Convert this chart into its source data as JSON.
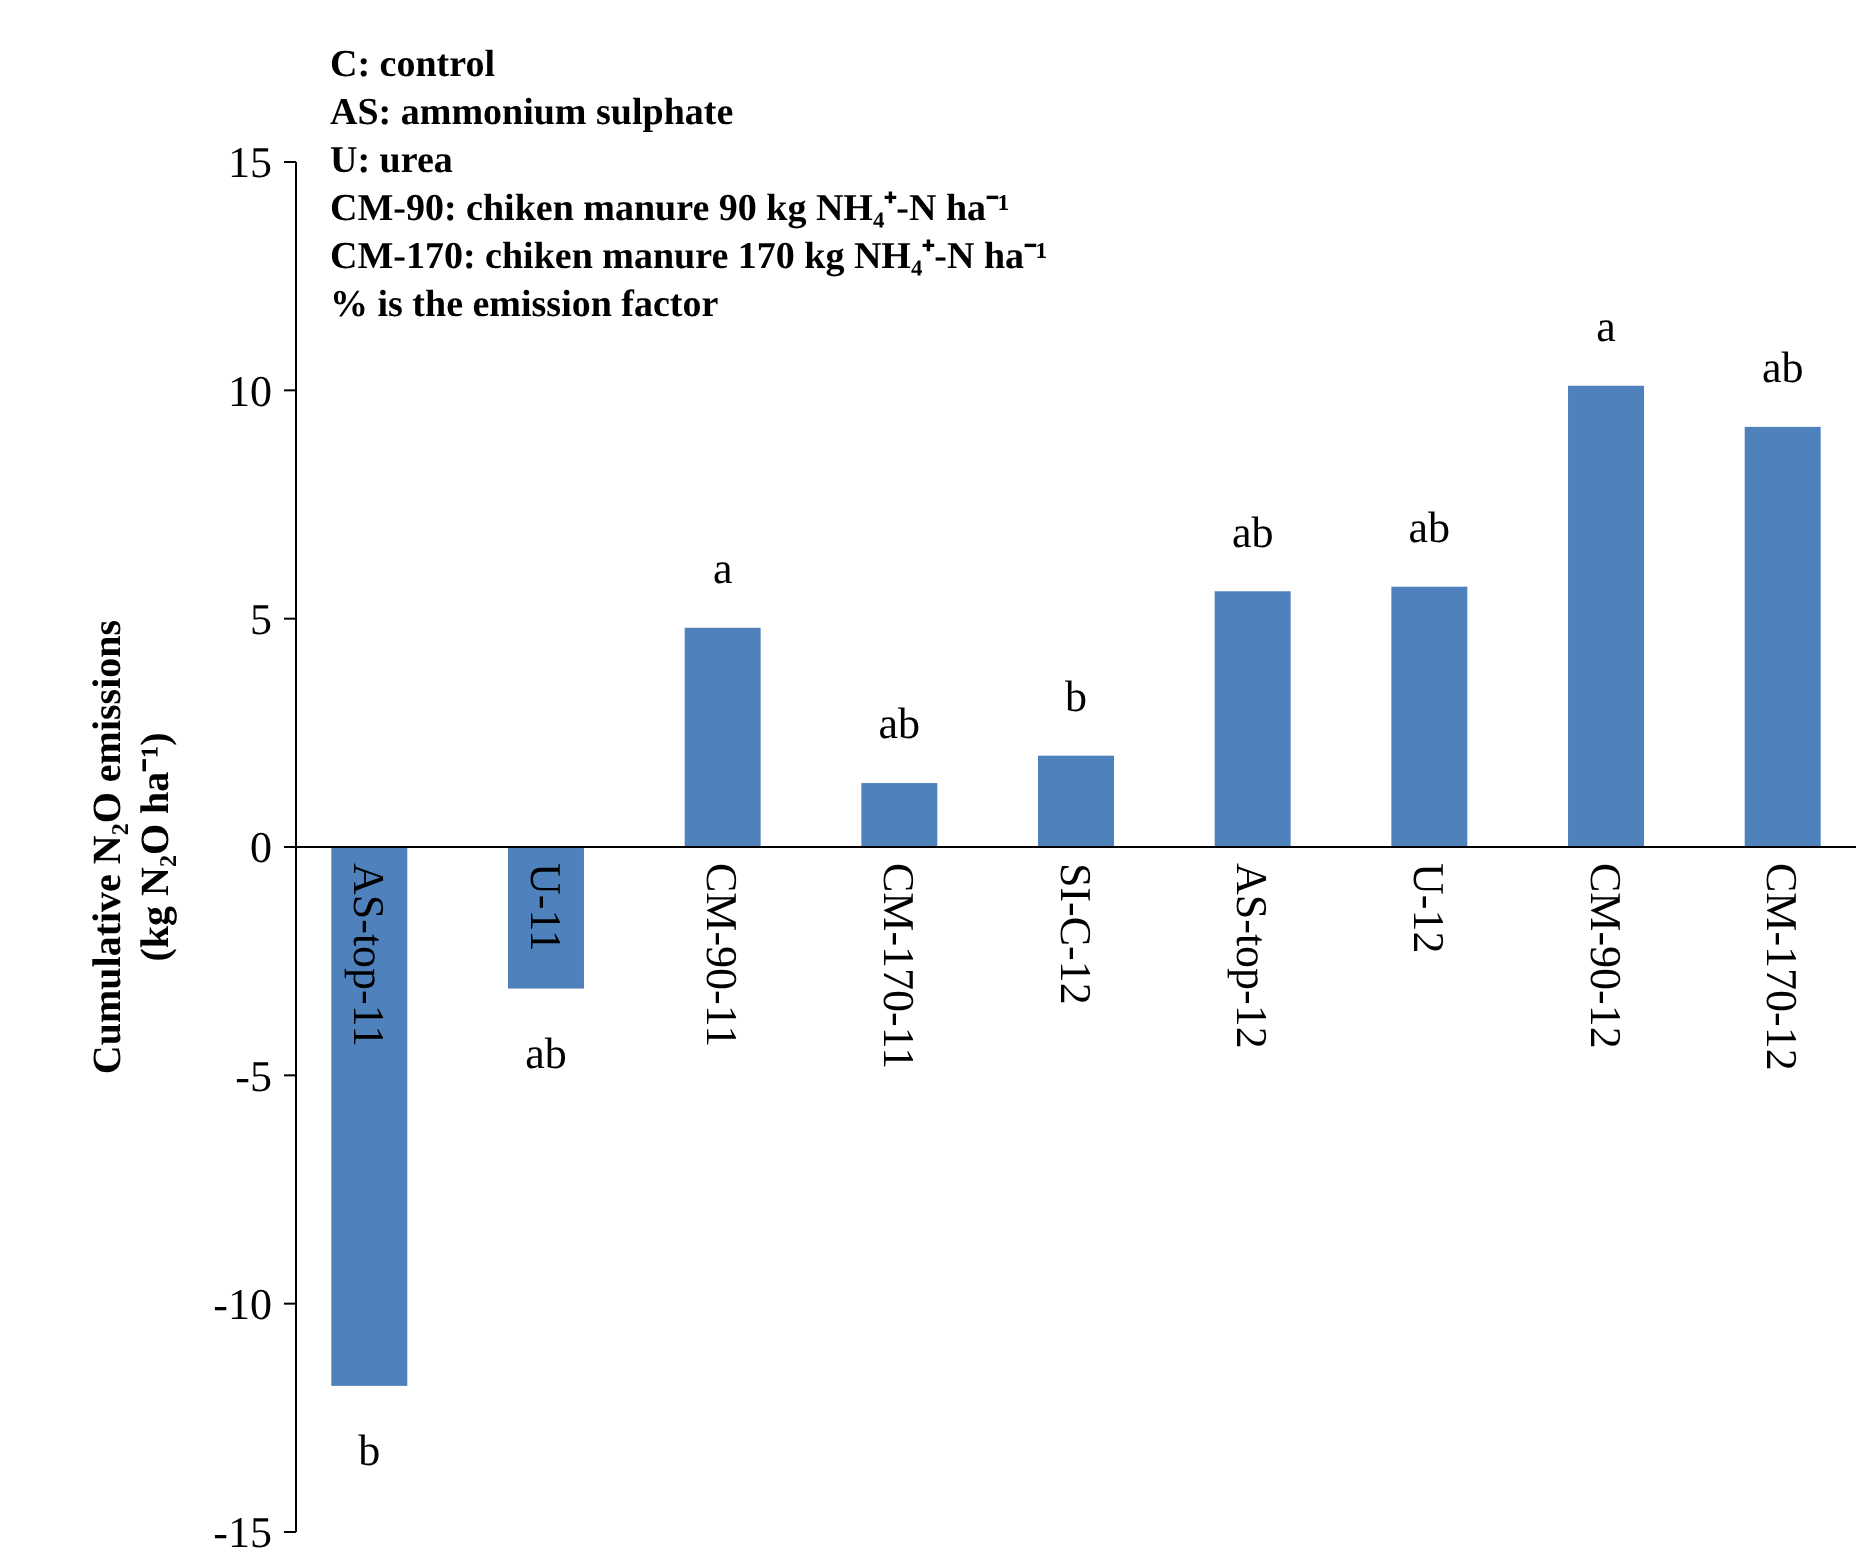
{
  "chart_data": {
    "type": "bar",
    "ylabel": "Cumulative N₂O emissions\n(kg N₂O ha⁻¹)",
    "categories": [
      "AS-top-11",
      "U-11",
      "CM-90-11",
      "CM-170-11",
      "SI-C-12",
      "AS-top-12",
      "U-12",
      "CM-90-12",
      "CM-170-12"
    ],
    "values": [
      -11.8,
      -3.1,
      4.8,
      1.4,
      2.0,
      5.6,
      5.7,
      10.1,
      9.2
    ],
    "color": "#4f81bd",
    "ylim": [
      -15,
      15
    ],
    "yticks": [
      -15,
      -10,
      -5,
      0,
      5,
      10,
      15
    ],
    "grid": false,
    "annotations": [
      "C: control",
      "AS: ammonium sulphate",
      "U: urea",
      "CM-90: chiken manure 90 kg NH₄⁺-N ha⁻¹",
      "CM-170: chiken manure 170 kg NH₄⁺-N ha⁻¹",
      "% is the emission factor",
      {
        "text": "b",
        "x": "AS-top-11",
        "y": -11.8
      },
      {
        "text": "ab",
        "x": "U-11",
        "y": -3.1
      },
      {
        "text": "a",
        "x": "CM-90-11",
        "y": 4.8
      },
      {
        "text": "ab",
        "x": "CM-170-11",
        "y": 1.4
      },
      {
        "text": "b",
        "x": "SI-C-12",
        "y": 2.0
      },
      {
        "text": "ab",
        "x": "AS-top-12",
        "y": 5.6
      },
      {
        "text": "ab",
        "x": "U-12",
        "y": 5.7
      },
      {
        "text": "a",
        "x": "CM-90-12",
        "y": 10.1
      },
      {
        "text": "ab",
        "x": "CM-170-12",
        "y": 9.2
      }
    ]
  }
}
